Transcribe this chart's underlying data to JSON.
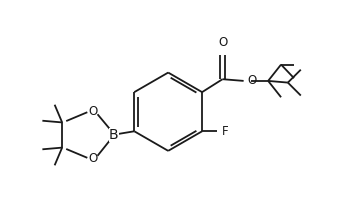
{
  "bg_color": "#ffffff",
  "line_color": "#1a1a1a",
  "line_width": 1.3,
  "font_size": 8.5,
  "fig_width": 3.5,
  "fig_height": 2.2,
  "dpi": 100,
  "xlim": [
    0,
    10
  ],
  "ylim": [
    0,
    6.3
  ]
}
